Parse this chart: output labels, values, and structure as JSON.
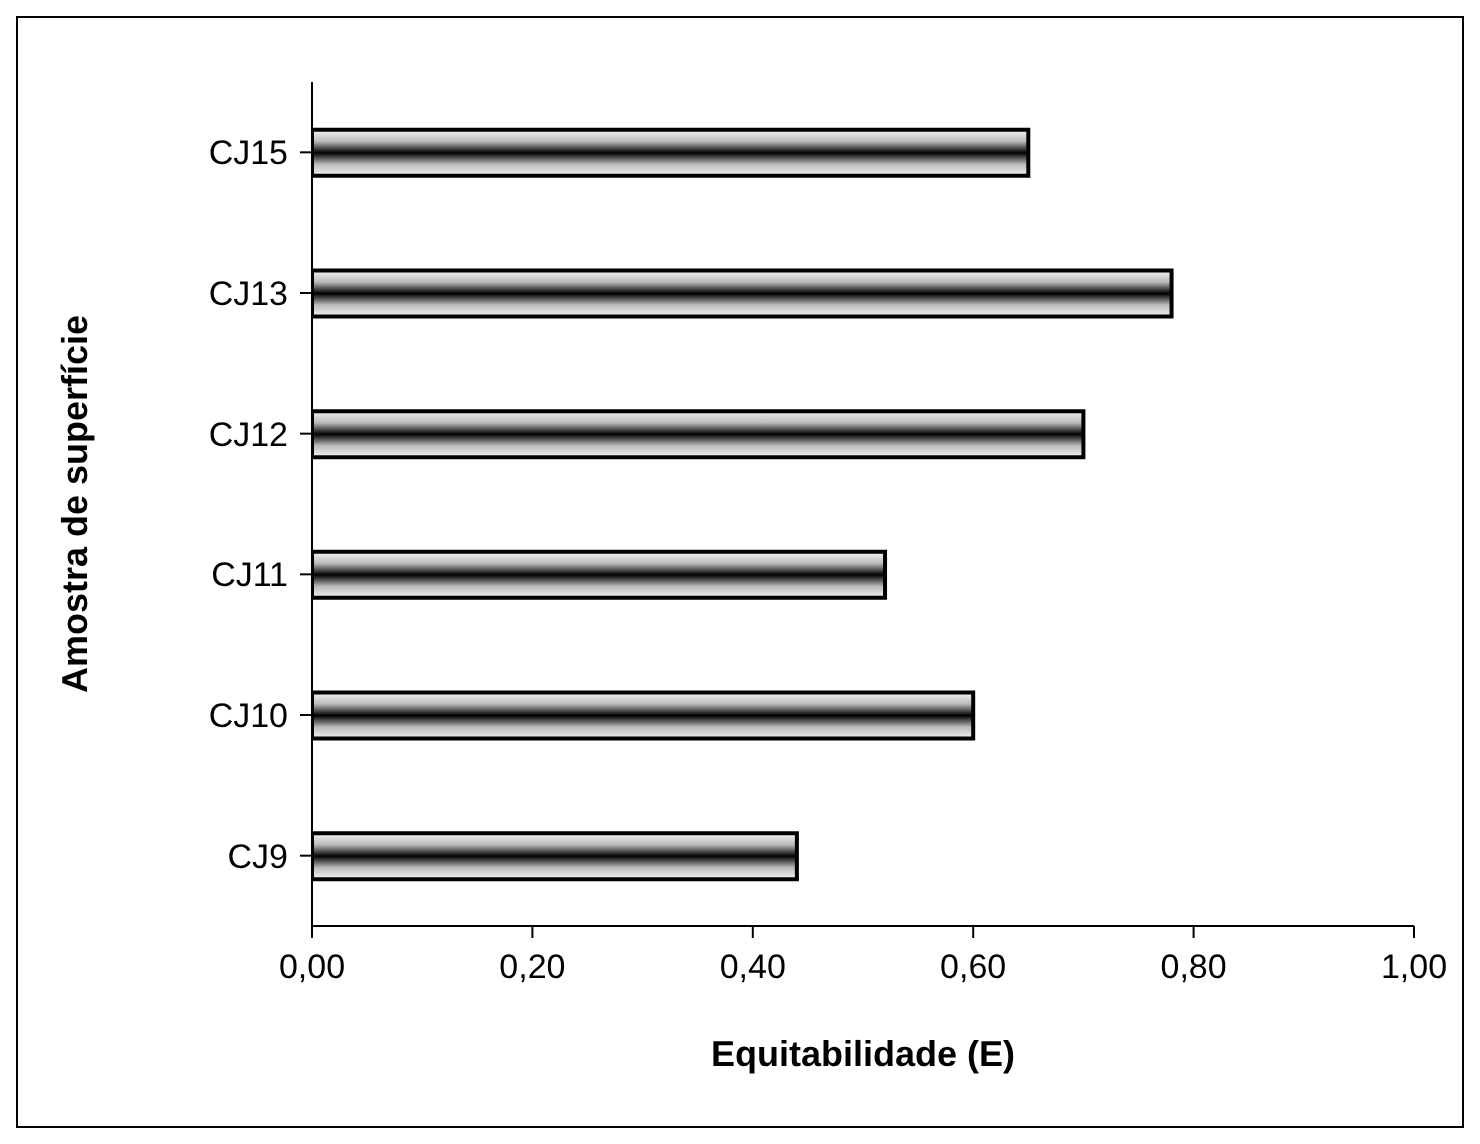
{
  "chart_data": {
    "type": "bar",
    "orientation": "horizontal",
    "xlabel": "Equitabilidade (E)",
    "ylabel": "Amostra de superfície",
    "categories": [
      "CJ15",
      "CJ13",
      "CJ12",
      "CJ11",
      "CJ10",
      "CJ9"
    ],
    "values": [
      0.65,
      0.78,
      0.7,
      0.52,
      0.6,
      0.44
    ],
    "color": "#000000",
    "xlim": [
      0,
      1
    ],
    "xticks": [
      {
        "value": 0,
        "label": "0,00"
      },
      {
        "value": 0.2,
        "label": "0,20"
      },
      {
        "value": 0.4,
        "label": "0,40"
      },
      {
        "value": 0.6,
        "label": "0,60"
      },
      {
        "value": 0.8,
        "label": "0,80"
      },
      {
        "value": 1,
        "label": "1,00"
      }
    ],
    "grid": false,
    "legend": false
  }
}
